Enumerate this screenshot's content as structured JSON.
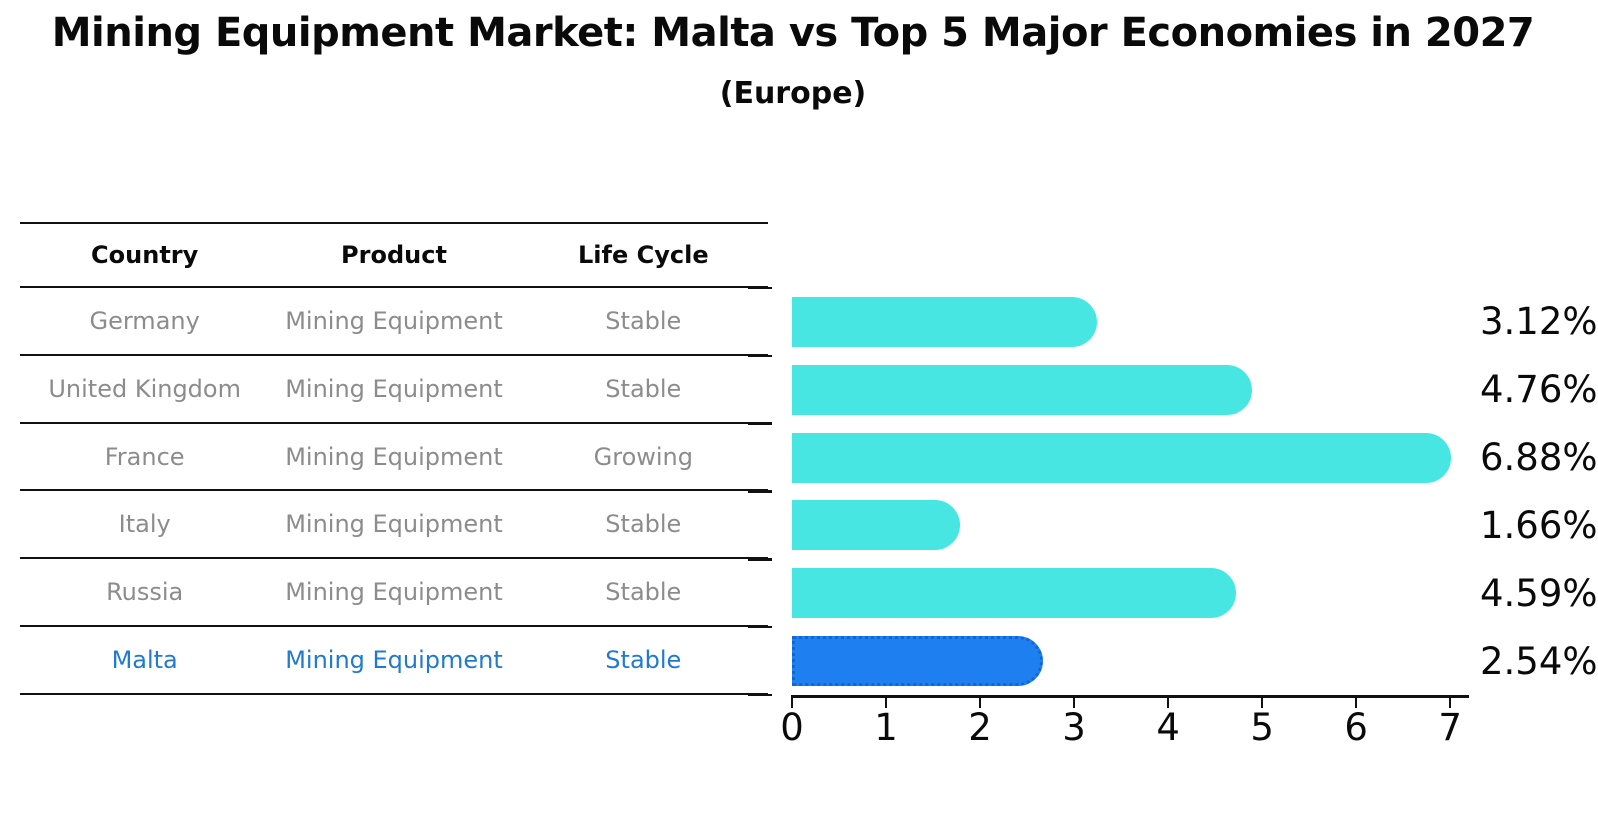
{
  "title": "Mining Equipment Market: Malta vs Top 5 Major Economies in 2027",
  "subtitle": "(Europe)",
  "table": {
    "headers": [
      "Country",
      "Product",
      "Life Cycle"
    ],
    "rows": [
      {
        "country": "Germany",
        "product": "Mining Equipment",
        "life_cycle": "Stable",
        "highlight": false
      },
      {
        "country": "United Kingdom",
        "product": "Mining Equipment",
        "life_cycle": "Stable",
        "highlight": false
      },
      {
        "country": "France",
        "product": "Mining Equipment",
        "life_cycle": "Growing",
        "highlight": false
      },
      {
        "country": "Italy",
        "product": "Mining Equipment",
        "life_cycle": "Stable",
        "highlight": false
      },
      {
        "country": "Russia",
        "product": "Mining Equipment",
        "life_cycle": "Stable",
        "highlight": false
      },
      {
        "country": "Malta",
        "product": "Mining Equipment",
        "life_cycle": "Stable",
        "highlight": true
      }
    ]
  },
  "chart_data": {
    "type": "bar",
    "orientation": "horizontal",
    "title": "Mining Equipment Market: Malta vs Top 5 Major Economies in 2027",
    "subtitle": "(Europe)",
    "categories": [
      "Germany",
      "United Kingdom",
      "France",
      "Italy",
      "Russia",
      "Malta"
    ],
    "values": [
      3.12,
      4.76,
      6.88,
      1.66,
      4.59,
      2.54
    ],
    "value_labels": [
      "3.12%",
      "4.76%",
      "6.88%",
      "1.66%",
      "4.59%",
      "2.54%"
    ],
    "highlight_category": "Malta",
    "x_ticks": [
      0,
      1,
      2,
      3,
      4,
      5,
      6,
      7
    ],
    "xlim": [
      0,
      7.2
    ],
    "grid": false,
    "legend": "none",
    "colors": {
      "bar": "#47e6e2",
      "highlight_bar": "#1e80f0",
      "highlight_bar_border": "#1266d0",
      "highlight_text": "#1f7ad0",
      "row_text": "#8c8c8c",
      "axis": "#111111",
      "label_text": "#0a0a0a"
    }
  }
}
